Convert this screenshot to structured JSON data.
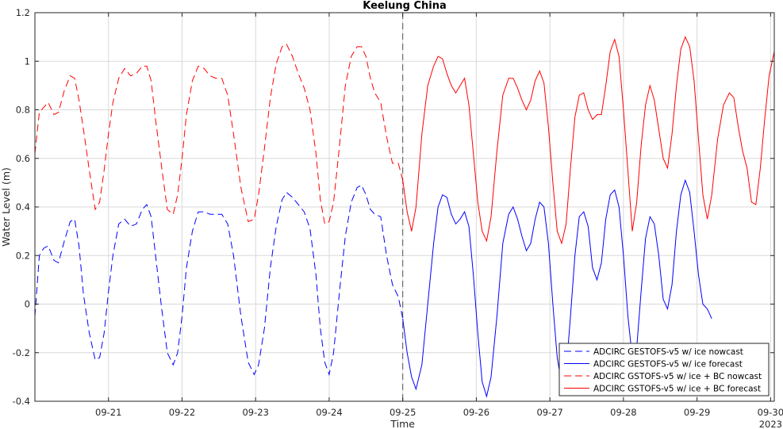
{
  "chart_data": {
    "type": "line",
    "title": "Keelung China",
    "xlabel": "Time",
    "ylabel": "Water Level (m)",
    "x_unit": "days",
    "xlim": [
      20.0,
      30.05
    ],
    "ylim": [
      -0.4,
      1.2
    ],
    "yticks": [
      -0.4,
      -0.2,
      0,
      0.2,
      0.4,
      0.6,
      0.8,
      1,
      1.2
    ],
    "ytick_labels": [
      "-0.4",
      "-0.2",
      "0",
      "0.2",
      "0.4",
      "0.6",
      "0.8",
      "1",
      "1.2"
    ],
    "xticks": [
      21,
      22,
      23,
      24,
      25,
      26,
      27,
      28,
      29,
      30
    ],
    "xtick_labels": [
      "09-21",
      "09-22",
      "09-23",
      "09-24",
      "09-25",
      "09-26",
      "09-27",
      "09-28",
      "09-29",
      "09-30"
    ],
    "year_label": "2023",
    "grid": true,
    "legend_position": "bottom-right",
    "nowcast_forecast_divider_x": 25.0,
    "series": [
      {
        "name": "ADCIRC GESTOFS-v5 w/ ice nowcast",
        "color": "#0000ff",
        "style": "dashed",
        "x": [
          20.0,
          20.06,
          20.12,
          20.18,
          20.26,
          20.32,
          20.4,
          20.48,
          20.54,
          20.6,
          20.66,
          20.74,
          20.82,
          20.88,
          20.94,
          21.0,
          21.06,
          21.14,
          21.22,
          21.3,
          21.38,
          21.46,
          21.52,
          21.58,
          21.64,
          21.72,
          21.8,
          21.88,
          21.94,
          22.0,
          22.06,
          22.14,
          22.22,
          22.3,
          22.38,
          22.46,
          22.54,
          22.62,
          22.7,
          22.8,
          22.9,
          22.98,
          23.04,
          23.12,
          23.2,
          23.28,
          23.36,
          23.42,
          23.5,
          23.58,
          23.66,
          23.74,
          23.82,
          23.88,
          23.94,
          24.0,
          24.06,
          24.14,
          24.22,
          24.3,
          24.38,
          24.44,
          24.5,
          24.56,
          24.62,
          24.7,
          24.78,
          24.86,
          24.94,
          25.0
        ],
        "y": [
          -0.05,
          0.2,
          0.23,
          0.24,
          0.18,
          0.17,
          0.26,
          0.34,
          0.35,
          0.24,
          0.04,
          -0.12,
          -0.23,
          -0.22,
          -0.12,
          0.05,
          0.2,
          0.33,
          0.35,
          0.32,
          0.33,
          0.39,
          0.41,
          0.36,
          0.2,
          -0.01,
          -0.2,
          -0.25,
          -0.2,
          -0.05,
          0.15,
          0.3,
          0.38,
          0.38,
          0.37,
          0.37,
          0.37,
          0.33,
          0.2,
          -0.05,
          -0.24,
          -0.29,
          -0.25,
          -0.1,
          0.15,
          0.32,
          0.43,
          0.46,
          0.44,
          0.41,
          0.38,
          0.31,
          0.12,
          -0.1,
          -0.24,
          -0.29,
          -0.2,
          0.05,
          0.28,
          0.42,
          0.48,
          0.49,
          0.45,
          0.39,
          0.37,
          0.36,
          0.2,
          0.08,
          0.03,
          -0.06
        ]
      },
      {
        "name": "ADCIRC GESTOFS-v5 w/ ice forecast",
        "color": "#0000ff",
        "style": "solid",
        "x": [
          25.0,
          25.06,
          25.12,
          25.18,
          25.26,
          25.34,
          25.42,
          25.48,
          25.54,
          25.6,
          25.66,
          25.72,
          25.78,
          25.84,
          25.9,
          25.96,
          26.02,
          26.08,
          26.14,
          26.2,
          26.28,
          26.36,
          26.44,
          26.5,
          26.56,
          26.62,
          26.68,
          26.74,
          26.8,
          26.86,
          26.92,
          26.98,
          27.04,
          27.1,
          27.16,
          27.22,
          27.28,
          27.34,
          27.4,
          27.46,
          27.52,
          27.58,
          27.64,
          27.7,
          27.76,
          27.82,
          27.88,
          27.94,
          28.0,
          28.06,
          28.12,
          28.18,
          28.24,
          28.3,
          28.36,
          28.42,
          28.48,
          28.54,
          28.6,
          28.66,
          28.72,
          28.78,
          28.84,
          28.9,
          28.96,
          29.02,
          29.08,
          29.14,
          29.2
        ],
        "y": [
          -0.06,
          -0.2,
          -0.3,
          -0.35,
          -0.25,
          0.0,
          0.25,
          0.4,
          0.45,
          0.44,
          0.37,
          0.33,
          0.35,
          0.38,
          0.32,
          0.12,
          -0.12,
          -0.32,
          -0.38,
          -0.3,
          -0.05,
          0.25,
          0.37,
          0.4,
          0.35,
          0.28,
          0.22,
          0.25,
          0.35,
          0.42,
          0.4,
          0.25,
          0.0,
          -0.22,
          -0.33,
          -0.28,
          -0.05,
          0.2,
          0.36,
          0.38,
          0.32,
          0.15,
          0.1,
          0.17,
          0.35,
          0.45,
          0.47,
          0.4,
          0.2,
          -0.05,
          -0.22,
          -0.18,
          0.05,
          0.27,
          0.36,
          0.33,
          0.2,
          0.02,
          -0.02,
          0.08,
          0.3,
          0.45,
          0.51,
          0.46,
          0.3,
          0.12,
          0.0,
          -0.02,
          -0.06
        ]
      },
      {
        "name": "ADCIRC GSTOFS-v5 w/ ice + BC nowcast",
        "color": "#ff0000",
        "style": "dashed",
        "x": [
          20.0,
          20.06,
          20.12,
          20.18,
          20.26,
          20.32,
          20.4,
          20.48,
          20.54,
          20.6,
          20.66,
          20.74,
          20.82,
          20.88,
          20.94,
          21.0,
          21.06,
          21.14,
          21.22,
          21.3,
          21.38,
          21.46,
          21.52,
          21.58,
          21.64,
          21.72,
          21.8,
          21.88,
          21.94,
          22.0,
          22.06,
          22.14,
          22.22,
          22.3,
          22.38,
          22.46,
          22.54,
          22.62,
          22.7,
          22.8,
          22.9,
          22.98,
          23.04,
          23.12,
          23.2,
          23.28,
          23.36,
          23.42,
          23.5,
          23.58,
          23.66,
          23.74,
          23.82,
          23.88,
          23.94,
          24.0,
          24.06,
          24.14,
          24.22,
          24.3,
          24.38,
          24.44,
          24.5,
          24.56,
          24.62,
          24.7,
          24.78,
          24.86,
          24.94,
          25.0
        ],
        "y": [
          0.62,
          0.79,
          0.81,
          0.83,
          0.78,
          0.79,
          0.88,
          0.94,
          0.93,
          0.84,
          0.72,
          0.55,
          0.39,
          0.42,
          0.55,
          0.7,
          0.83,
          0.93,
          0.97,
          0.94,
          0.95,
          0.98,
          0.98,
          0.92,
          0.76,
          0.57,
          0.39,
          0.37,
          0.45,
          0.6,
          0.78,
          0.92,
          0.98,
          0.97,
          0.94,
          0.93,
          0.93,
          0.86,
          0.7,
          0.48,
          0.34,
          0.35,
          0.45,
          0.64,
          0.85,
          0.99,
          1.06,
          1.07,
          1.02,
          0.95,
          0.89,
          0.8,
          0.62,
          0.43,
          0.33,
          0.34,
          0.42,
          0.65,
          0.9,
          1.02,
          1.06,
          1.06,
          1.02,
          0.93,
          0.87,
          0.83,
          0.69,
          0.58,
          0.58,
          0.51
        ]
      },
      {
        "name": "ADCIRC GSTOFS-v5 w/ ice + BC forecast",
        "color": "#ff0000",
        "style": "solid",
        "x": [
          25.0,
          25.06,
          25.12,
          25.18,
          25.26,
          25.34,
          25.42,
          25.48,
          25.54,
          25.6,
          25.66,
          25.72,
          25.78,
          25.84,
          25.9,
          25.96,
          26.02,
          26.08,
          26.14,
          26.2,
          26.28,
          26.36,
          26.44,
          26.5,
          26.56,
          26.62,
          26.68,
          26.74,
          26.8,
          26.86,
          26.92,
          26.98,
          27.04,
          27.1,
          27.16,
          27.22,
          27.28,
          27.34,
          27.4,
          27.46,
          27.52,
          27.58,
          27.64,
          27.7,
          27.76,
          27.82,
          27.88,
          27.94,
          28.0,
          28.06,
          28.12,
          28.18,
          28.24,
          28.3,
          28.36,
          28.42,
          28.48,
          28.54,
          28.6,
          28.66,
          28.72,
          28.78,
          28.84,
          28.9,
          28.96,
          29.02,
          29.08,
          29.14,
          29.2,
          29.28,
          29.36,
          29.44,
          29.5,
          29.56,
          29.62,
          29.68,
          29.74,
          29.8,
          29.86,
          29.92,
          29.98,
          30.05
        ],
        "y": [
          0.51,
          0.38,
          0.3,
          0.4,
          0.7,
          0.9,
          0.98,
          1.02,
          1.01,
          0.95,
          0.9,
          0.87,
          0.9,
          0.93,
          0.82,
          0.62,
          0.42,
          0.3,
          0.26,
          0.36,
          0.63,
          0.86,
          0.93,
          0.93,
          0.89,
          0.84,
          0.8,
          0.84,
          0.92,
          0.96,
          0.91,
          0.73,
          0.5,
          0.3,
          0.25,
          0.33,
          0.56,
          0.77,
          0.86,
          0.87,
          0.8,
          0.76,
          0.78,
          0.78,
          0.9,
          1.04,
          1.09,
          1.02,
          0.8,
          0.55,
          0.3,
          0.42,
          0.65,
          0.82,
          0.9,
          0.84,
          0.72,
          0.6,
          0.56,
          0.7,
          0.9,
          1.05,
          1.1,
          1.06,
          0.92,
          0.68,
          0.45,
          0.35,
          0.45,
          0.68,
          0.82,
          0.87,
          0.85,
          0.73,
          0.63,
          0.56,
          0.42,
          0.41,
          0.56,
          0.76,
          0.94,
          1.04
        ]
      }
    ]
  }
}
